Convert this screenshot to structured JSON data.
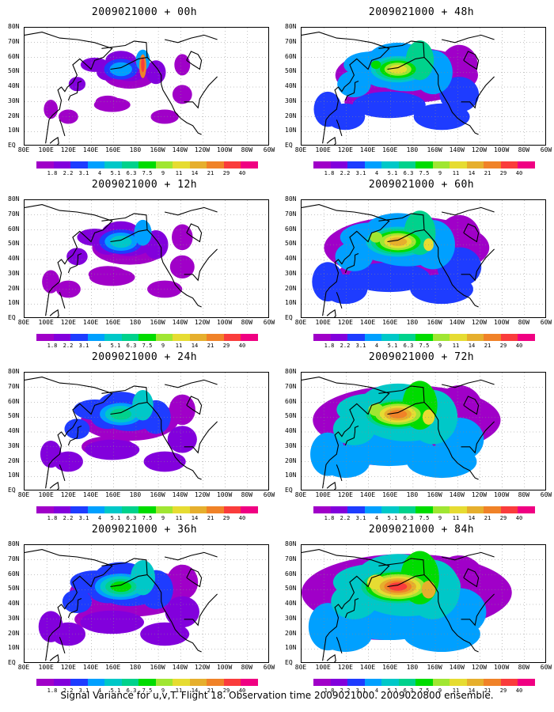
{
  "caption": "Signal Variance for u,v,T. Flight 18. Observation time 2009021000. 2009020800 ensemble.",
  "lat_labels": [
    "80N",
    "70N",
    "60N",
    "50N",
    "40N",
    "30N",
    "20N",
    "10N",
    "EQ"
  ],
  "lon_labels": [
    "80E",
    "100E",
    "120E",
    "140E",
    "160E",
    "180",
    "160W",
    "140W",
    "120W",
    "100W",
    "80W",
    "60W"
  ],
  "colorbar": {
    "labels": [
      "1.8",
      "2.2",
      "3.1",
      "4",
      "5.1",
      "6.3",
      "7.5",
      "9",
      "11",
      "14",
      "21",
      "29",
      "40"
    ],
    "colors": [
      "#a000c8",
      "#8200dc",
      "#1e3cff",
      "#00a0ff",
      "#00c8c8",
      "#00d28c",
      "#00dc00",
      "#a0e632",
      "#e6dc32",
      "#e6af2d",
      "#f08228",
      "#fa3c3c",
      "#f00082"
    ]
  },
  "panels": [
    {
      "title": "2009021000 + 00h",
      "lead_hours": 0
    },
    {
      "title": "2009021000 + 48h",
      "lead_hours": 48
    },
    {
      "title": "2009021000 + 12h",
      "lead_hours": 12
    },
    {
      "title": "2009021000 + 60h",
      "lead_hours": 60
    },
    {
      "title": "2009021000 + 24h",
      "lead_hours": 24
    },
    {
      "title": "2009021000 + 72h",
      "lead_hours": 72
    },
    {
      "title": "2009021000 + 36h",
      "lead_hours": 36
    },
    {
      "title": "2009021000 + 84h",
      "lead_hours": 84
    }
  ]
}
